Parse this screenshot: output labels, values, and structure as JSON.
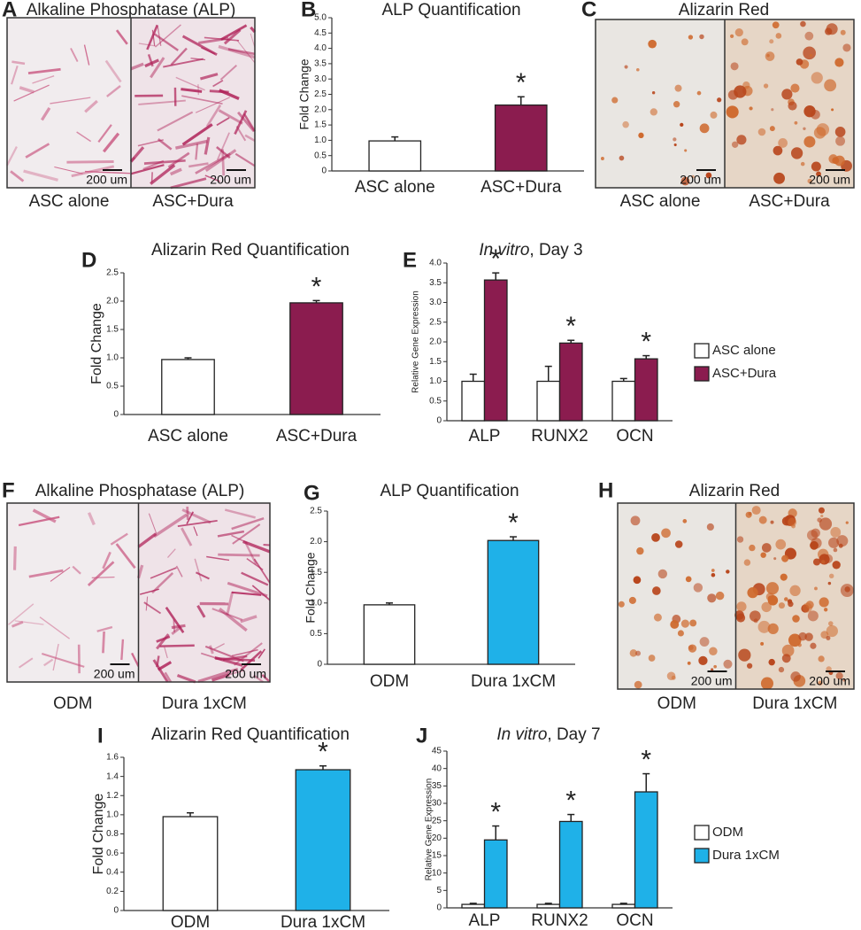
{
  "image_panels": [
    {
      "letter": "A",
      "title": "Alkaline Phosphatase (ALP)",
      "captions": [
        "ASC alone",
        "ASC+Dura"
      ],
      "scale_bars": [
        "200 um",
        "200 um"
      ]
    },
    {
      "letter": "C",
      "title": "Alizarin Red",
      "captions": [
        "ASC alone",
        "ASC+Dura"
      ],
      "scale_bars": [
        "200 um",
        "200 um"
      ]
    },
    {
      "letter": "F",
      "title": "Alkaline Phosphatase (ALP)",
      "captions": [
        "ODM",
        "Dura 1xCM"
      ],
      "scale_bars": [
        "200 um",
        "200 um"
      ]
    },
    {
      "letter": "H",
      "title": "Alizarin Red",
      "captions": [
        "ODM",
        "Dura 1xCM"
      ],
      "scale_bars": [
        "200 um",
        "200 um"
      ]
    }
  ],
  "chart_data": [
    {
      "type": "bar",
      "panel": "B",
      "title": "ALP Quantification",
      "y_label": "Fold Change",
      "categories": [
        "ASC alone",
        "ASC+Dura"
      ],
      "values": [
        0.98,
        2.15
      ],
      "errors": [
        0.13,
        0.27
      ],
      "value_annotations": [
        null,
        "*"
      ],
      "colors": [
        "#ffffff",
        "#8b1c4f"
      ],
      "ylim": [
        0,
        5
      ],
      "yticks": [
        0,
        0.5,
        {
          "value": 1,
          "label": "1.0"
        },
        1.5,
        {
          "value": 2,
          "label": "2.0"
        },
        2.5,
        {
          "value": 3,
          "label": "3.0"
        },
        3.5,
        {
          "value": 4,
          "label": "4.0"
        },
        4.5,
        {
          "value": 5,
          "label": "5.0"
        }
      ]
    },
    {
      "type": "bar",
      "panel": "D",
      "title": "Alizarin Red Quantification",
      "y_label": "Fold Change",
      "categories": [
        "ASC alone",
        "ASC+Dura"
      ],
      "values": [
        0.97,
        1.97
      ],
      "errors": [
        0.03,
        0.04
      ],
      "value_annotations": [
        null,
        "*"
      ],
      "colors": [
        "#ffffff",
        "#8b1c4f"
      ],
      "ylim": [
        0,
        2.5
      ],
      "yticks": [
        0,
        0.5,
        {
          "value": 1,
          "label": "1.0"
        },
        1.5,
        {
          "value": 2,
          "label": "2.0"
        },
        2.5
      ]
    },
    {
      "type": "grouped_bar",
      "panel": "E",
      "title_parts": [
        "In vitro",
        ", Day 3"
      ],
      "y_label": "Relative Gene Expression",
      "categories": [
        "ALP",
        "RUNX2",
        "OCN"
      ],
      "legend": "right",
      "series": [
        {
          "name": "ASC alone",
          "color": "#ffffff",
          "values": [
            1,
            1,
            1
          ],
          "errors": [
            0.18,
            0.38,
            0.07
          ],
          "annotations": [
            null,
            null,
            null
          ]
        },
        {
          "name": "ASC+Dura",
          "color": "#8b1c4f",
          "values": [
            3.57,
            1.97,
            1.57
          ],
          "errors": [
            0.18,
            0.07,
            0.08
          ],
          "annotations": [
            "*",
            "*",
            "*"
          ]
        }
      ],
      "ylim": [
        0,
        4
      ],
      "yticks": [
        0,
        0.5,
        {
          "value": 1,
          "label": "1.0"
        },
        1.5,
        {
          "value": 2,
          "label": "2.0"
        },
        2.5,
        {
          "value": 3,
          "label": "3.0"
        },
        3.5,
        {
          "value": 4,
          "label": "4.0"
        }
      ]
    },
    {
      "type": "bar",
      "panel": "G",
      "title": "ALP Quantification",
      "y_label": "Fold Change",
      "categories": [
        "ODM",
        "Dura 1xCM"
      ],
      "values": [
        0.97,
        2.02
      ],
      "errors": [
        0.03,
        0.06
      ],
      "value_annotations": [
        null,
        "*"
      ],
      "colors": [
        "#ffffff",
        "#1fb1e8"
      ],
      "ylim": [
        0,
        2.5
      ],
      "yticks": [
        0,
        0.5,
        {
          "value": 1,
          "label": "1.0"
        },
        1.5,
        {
          "value": 2,
          "label": "2.0"
        },
        2.5
      ]
    },
    {
      "type": "bar",
      "panel": "I",
      "title": "Alizarin Red Quantification",
      "y_label": "Fold Change",
      "categories": [
        "ODM",
        "Dura 1xCM"
      ],
      "values": [
        0.98,
        1.47
      ],
      "errors": [
        0.04,
        0.04
      ],
      "value_annotations": [
        null,
        "*"
      ],
      "colors": [
        "#ffffff",
        "#1fb1e8"
      ],
      "ylim": [
        0,
        1.6
      ],
      "yticks": [
        0,
        0.2,
        0.4,
        0.6,
        0.8,
        {
          "value": 1,
          "label": "1.0"
        },
        1.2,
        1.4,
        1.6
      ]
    },
    {
      "type": "grouped_bar",
      "panel": "J",
      "title_parts": [
        "In vitro",
        ", Day 7"
      ],
      "y_label": "Relative Gene Expression",
      "categories": [
        "ALP",
        "RUNX2",
        "OCN"
      ],
      "legend": "right",
      "series": [
        {
          "name": "ODM",
          "color": "#ffffff",
          "values": [
            1,
            1,
            1
          ],
          "errors": [
            0.3,
            0.3,
            0.3
          ],
          "annotations": [
            null,
            null,
            null
          ]
        },
        {
          "name": "Dura 1xCM",
          "color": "#1fb1e8",
          "values": [
            19.5,
            24.8,
            33.3
          ],
          "errors": [
            4,
            2,
            5.2
          ],
          "annotations": [
            "*",
            "*",
            "*"
          ]
        }
      ],
      "ylim": [
        0,
        45
      ],
      "yticks": [
        0,
        5,
        10,
        15,
        20,
        25,
        30,
        35,
        40,
        45
      ]
    }
  ]
}
